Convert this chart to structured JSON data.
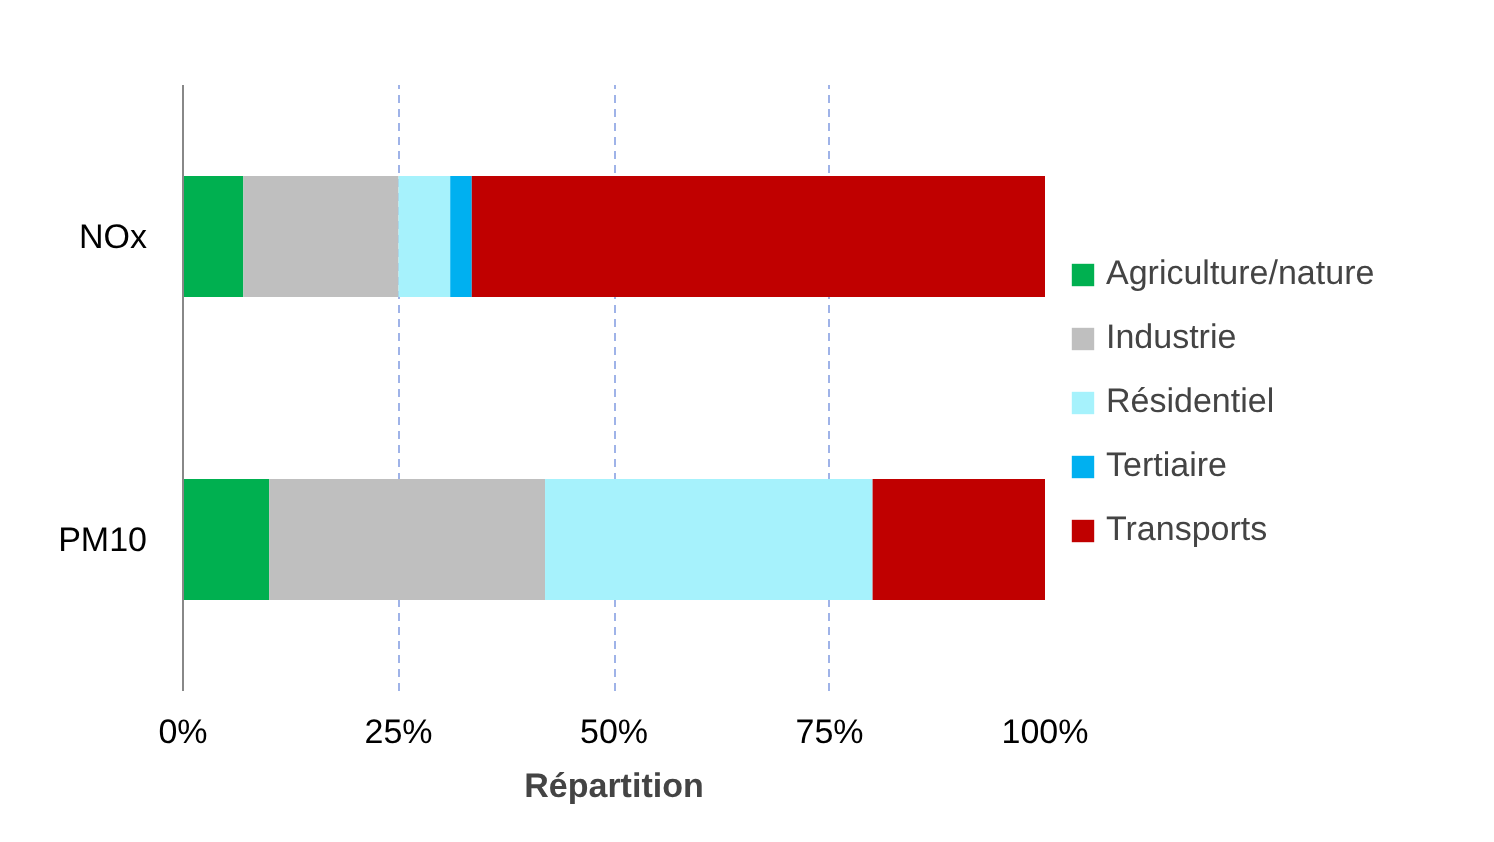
{
  "chart_data": {
    "type": "bar",
    "orientation": "horizontal",
    "stacked": true,
    "xlabel": "Répartition",
    "categories": [
      "NOx",
      "PM10"
    ],
    "series": [
      {
        "name": "Agriculture/nature",
        "color": "#00b050",
        "values": [
          7,
          10
        ]
      },
      {
        "name": "Industrie",
        "color": "#bfbfbf",
        "values": [
          18,
          32
        ]
      },
      {
        "name": "Résidentiel",
        "color": "#a6f2fc",
        "values": [
          6,
          38
        ]
      },
      {
        "name": "Tertiaire",
        "color": "#00b0f0",
        "values": [
          2.5,
          0
        ]
      },
      {
        "name": "Transports",
        "color": "#c00000",
        "values": [
          66.5,
          20
        ]
      }
    ],
    "xlim": [
      0,
      100
    ],
    "xticks": [
      {
        "value": 0,
        "label": "0%"
      },
      {
        "value": 25,
        "label": "25%"
      },
      {
        "value": 50,
        "label": "50%"
      },
      {
        "value": 75,
        "label": "75%"
      },
      {
        "value": 100,
        "label": "100%"
      }
    ],
    "grid": "x",
    "legend": "right"
  }
}
